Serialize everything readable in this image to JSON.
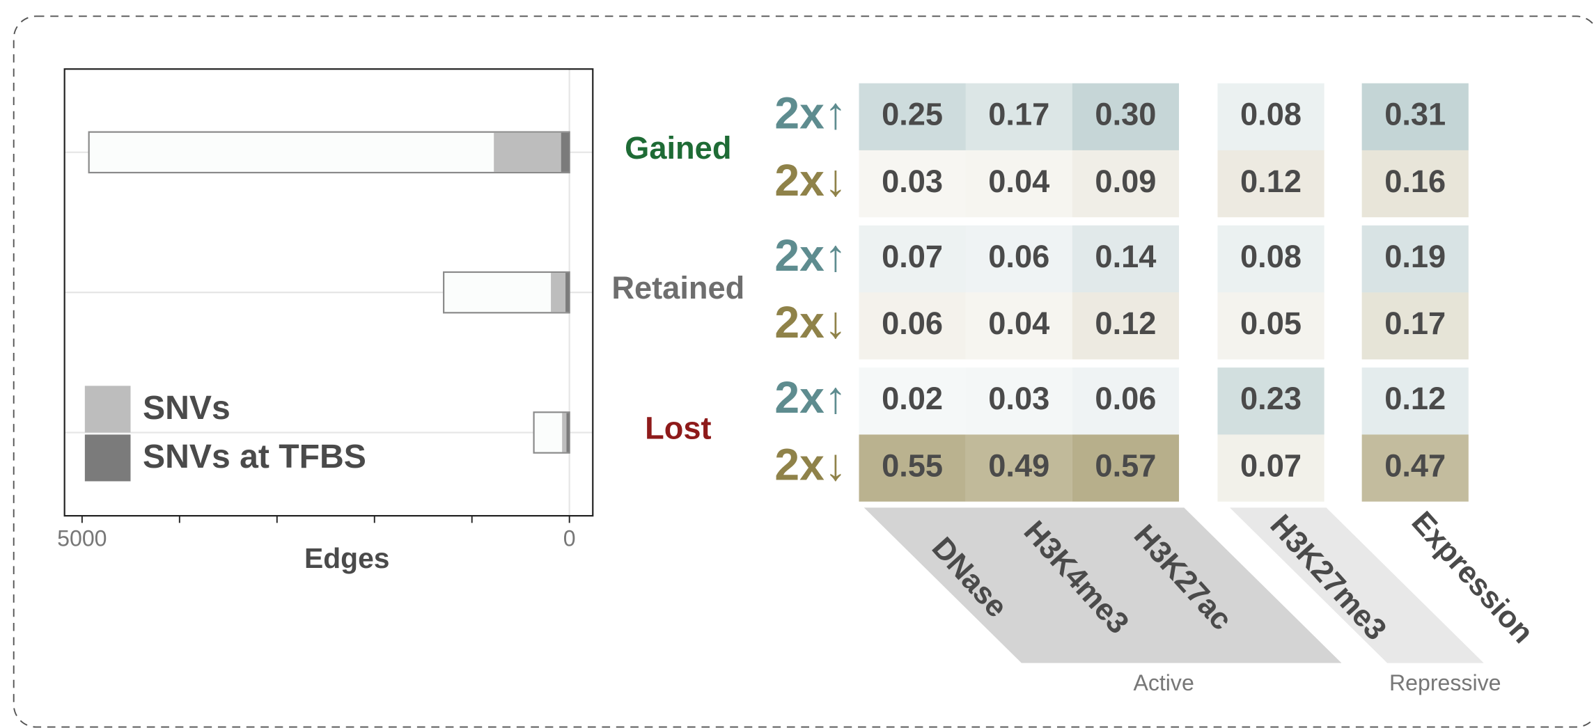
{
  "chart_data": [
    {
      "type": "bar",
      "orientation": "horizontal",
      "x_label": "Edges",
      "categories": [
        "Gained",
        "Retained",
        "Lost"
      ],
      "category_colors": [
        "#1e6b35",
        "#6e6e6e",
        "#8e1a1a"
      ],
      "values": [
        4930,
        1290,
        365
      ],
      "color": "#fbfdfc",
      "series": [
        {
          "name": "SNVs",
          "color": "#bdbdbd",
          "values": [
            775,
            190,
            75
          ]
        },
        {
          "name": "SNVs at TFBS",
          "color": "#7b7b7b",
          "values": [
            85,
            40,
            30
          ]
        }
      ],
      "xlim": [
        5180,
        -240
      ],
      "xticks": [
        5000,
        0
      ],
      "minor_xticks": [
        4000,
        3000,
        2000,
        1000
      ],
      "grid": true,
      "legend": "lower left"
    },
    {
      "type": "heatmap",
      "rows": [
        "2x↑",
        "2x↓",
        "2x↑",
        "2x↓",
        "2x↑",
        "2x↓"
      ],
      "row_colors": [
        "#5e8c8f",
        "#8f8249",
        "#5e8c8f",
        "#8f8249",
        "#5e8c8f",
        "#8f8249"
      ],
      "columns": [
        "DNase",
        "H3K4me3",
        "H3K27ac",
        "H3K27me3",
        "Expression"
      ],
      "column_groups": [
        "Active",
        "Repressive"
      ],
      "values": [
        [
          0.25,
          0.17,
          0.3,
          0.08,
          0.31
        ],
        [
          0.03,
          0.04,
          0.09,
          0.12,
          0.16
        ],
        [
          0.07,
          0.06,
          0.14,
          0.08,
          0.19
        ],
        [
          0.06,
          0.04,
          0.12,
          0.05,
          0.17
        ],
        [
          0.02,
          0.03,
          0.06,
          0.23,
          0.12
        ],
        [
          0.55,
          0.49,
          0.57,
          0.07,
          0.47
        ]
      ],
      "value_labels": [
        [
          "0.25",
          "0.17",
          "0.30",
          "0.08",
          "0.31"
        ],
        [
          "0.03",
          "0.04",
          "0.09",
          "0.12",
          "0.16"
        ],
        [
          "0.07",
          "0.06",
          "0.14",
          "0.08",
          "0.19"
        ],
        [
          "0.06",
          "0.04",
          "0.12",
          "0.05",
          "0.17"
        ],
        [
          "0.02",
          "0.03",
          "0.06",
          "0.23",
          "0.12"
        ],
        [
          "0.55",
          "0.49",
          "0.57",
          "0.07",
          "0.47"
        ]
      ]
    }
  ]
}
